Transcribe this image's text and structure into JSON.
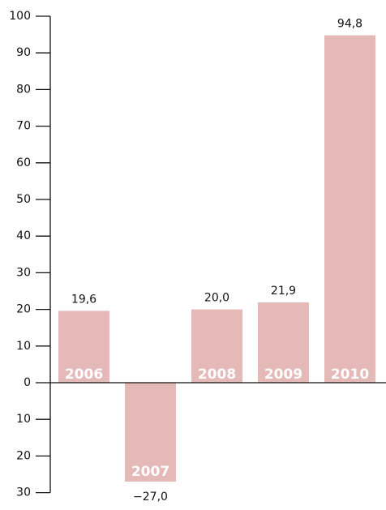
{
  "chart_data": {
    "type": "bar",
    "categories": [
      "2006",
      "2007",
      "2008",
      "2009",
      "2010"
    ],
    "values": [
      19.6,
      -27.0,
      20.0,
      21.9,
      94.8
    ],
    "value_labels": [
      "19,6",
      "−27,0",
      "20,0",
      "21,9",
      "94,8"
    ],
    "color": "#e4b9b7",
    "ylim": [
      -30,
      100
    ],
    "yticks": [
      100,
      90,
      80,
      70,
      60,
      50,
      40,
      30,
      20,
      10,
      0,
      {
        "value": -10,
        "label": "10"
      },
      {
        "value": -20,
        "label": "20"
      },
      {
        "value": -30,
        "label": "30"
      }
    ],
    "grid": false
  }
}
